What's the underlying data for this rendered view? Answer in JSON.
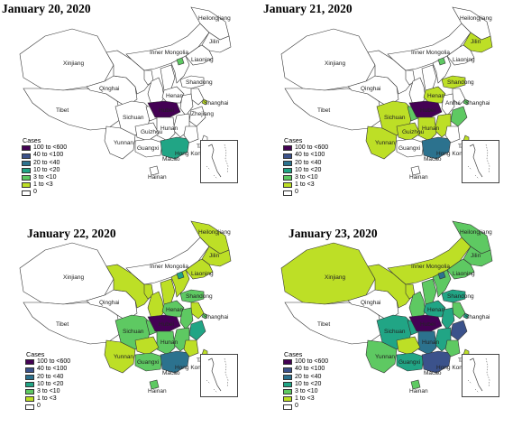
{
  "colors": {
    "c0": "#ffffff",
    "c1": "#bddf26",
    "c3": "#5ec962",
    "c10": "#21a585",
    "c20": "#2c728e",
    "c40": "#3b528b",
    "c100": "#440154"
  },
  "legend": {
    "title": "Cases",
    "items": [
      {
        "label": "100 to <600",
        "color": "#440154"
      },
      {
        "label": "40 to <100",
        "color": "#3b528b"
      },
      {
        "label": "20 to <40",
        "color": "#2c728e"
      },
      {
        "label": "10 to <20",
        "color": "#21a585"
      },
      {
        "label": "3 to <10",
        "color": "#5ec962"
      },
      {
        "label": "1 to <3",
        "color": "#bddf26"
      },
      {
        "label": "0",
        "color": "#ffffff"
      }
    ]
  },
  "panels": [
    {
      "title": "January 20, 2020",
      "regions": {
        "Xinjiang": "c0",
        "Tibet": "c0",
        "Qinghai": "c0",
        "Gansu": "c0",
        "InnerMongolia": "c0",
        "Heilongjiang": "c0",
        "Jilin": "c0",
        "Liaoning": "c0",
        "Sichuan": "c0",
        "Yunnan": "c0",
        "Guizhou": "c0",
        "Guangxi": "c0",
        "Guangdong": "c10",
        "Hunan": "c0",
        "Hubei": "c100",
        "Henan": "c0",
        "Shaanxi": "c0",
        "Shanxi": "c0",
        "Hebei": "c0",
        "Shandong": "c0",
        "Jiangsu": "c0",
        "Anhui": "c0",
        "Zhejiang": "c0",
        "Jiangxi": "c0",
        "Fujian": "c0",
        "Chongqing": "c0",
        "Beijing": "c3",
        "Shanghai": "c1",
        "Hainan": "c0",
        "Taiwan": "c0",
        "Ningxia": "c0"
      },
      "labels": [
        "Xinjiang",
        "Tibet",
        "Qinghai",
        "Sichuan",
        "Yunnan",
        "Guizhou",
        "Guangxi",
        "Hunan",
        "Hubei",
        "Henan",
        "Shandong",
        "Shanghai",
        "Zhejiang",
        "Taiwan",
        "Inner Mongolia",
        "Heilongjiang",
        "Jilin",
        "Liaoning",
        "Hong Kong",
        "Macao",
        "Hainan"
      ]
    },
    {
      "title": "January 21, 2020",
      "regions": {
        "Xinjiang": "c0",
        "Tibet": "c0",
        "Qinghai": "c0",
        "Gansu": "c0",
        "InnerMongolia": "c0",
        "Heilongjiang": "c0",
        "Jilin": "c1",
        "Liaoning": "c0",
        "Sichuan": "c1",
        "Yunnan": "c1",
        "Guizhou": "c1",
        "Guangxi": "c0",
        "Guangdong": "c20",
        "Hunan": "c1",
        "Hubei": "c100",
        "Henan": "c1",
        "Shaanxi": "c0",
        "Shanxi": "c0",
        "Hebei": "c0",
        "Shandong": "c1",
        "Jiangsu": "c0",
        "Anhui": "c0",
        "Zhejiang": "c3",
        "Jiangxi": "c1",
        "Fujian": "c0",
        "Chongqing": "c3",
        "Beijing": "c3",
        "Shanghai": "c3",
        "Hainan": "c0",
        "Taiwan": "c1",
        "Ningxia": "c0"
      },
      "labels": [
        "Xinjiang",
        "Tibet",
        "Qinghai",
        "Sichuan",
        "Yunnan",
        "Guizhou",
        "Guangxi",
        "Hunan",
        "Hubei",
        "Henan",
        "Shandong",
        "Shanghai",
        "Anhui",
        "Taiwan",
        "Inner Mongolia",
        "Heilongjiang",
        "Jilin",
        "Liaoning",
        "Hong Kong",
        "Macao",
        "Hainan"
      ]
    },
    {
      "title": "January 22, 2020",
      "regions": {
        "Xinjiang": "c0",
        "Tibet": "c0",
        "Qinghai": "c0",
        "Gansu": "c1",
        "InnerMongolia": "c0",
        "Heilongjiang": "c1",
        "Jilin": "c1",
        "Liaoning": "c1",
        "Sichuan": "c3",
        "Yunnan": "c1",
        "Guizhou": "c1",
        "Guangxi": "c3",
        "Guangdong": "c20",
        "Hunan": "c3",
        "Hubei": "c100",
        "Henan": "c3",
        "Shaanxi": "c1",
        "Shanxi": "c1",
        "Hebei": "c1",
        "Shandong": "c3",
        "Jiangsu": "c1",
        "Anhui": "c3",
        "Zhejiang": "c10",
        "Jiangxi": "c3",
        "Fujian": "c1",
        "Chongqing": "c3",
        "Beijing": "c10",
        "Shanghai": "c3",
        "Hainan": "c3",
        "Taiwan": "c1",
        "Ningxia": "c1"
      },
      "labels": [
        "Xinjiang",
        "Tibet",
        "Qinghai",
        "Sichuan",
        "Yunnan",
        "Guangxi",
        "Hunan",
        "Hubei",
        "Henan",
        "Shandong",
        "Shanghai",
        "Taiwan",
        "Inner Mongolia",
        "Heilongjiang",
        "Jilin",
        "Liaoning",
        "Hong Kong",
        "Macao",
        "Hainan"
      ]
    },
    {
      "title": "January 23, 2020",
      "regions": {
        "Xinjiang": "c1",
        "Tibet": "c0",
        "Qinghai": "c0",
        "Gansu": "c1",
        "InnerMongolia": "c1",
        "Heilongjiang": "c3",
        "Jilin": "c3",
        "Liaoning": "c3",
        "Sichuan": "c10",
        "Yunnan": "c3",
        "Guizhou": "c1",
        "Guangxi": "c10",
        "Guangdong": "c40",
        "Hunan": "c20",
        "Hubei": "c100",
        "Henan": "c10",
        "Shaanxi": "c3",
        "Shanxi": "c3",
        "Hebei": "c3",
        "Shandong": "c10",
        "Jiangsu": "c3",
        "Anhui": "c10",
        "Zhejiang": "c40",
        "Jiangxi": "c10",
        "Fujian": "c3",
        "Chongqing": "c10",
        "Beijing": "c20",
        "Shanghai": "c10",
        "Hainan": "c3",
        "Taiwan": "c1",
        "Ningxia": "c1"
      },
      "labels": [
        "Xinjiang",
        "Tibet",
        "Qinghai",
        "Sichuan",
        "Yunnan",
        "Guangxi",
        "Hunan",
        "Hubei",
        "Henan",
        "Shandong",
        "Shanghai",
        "Taiwan",
        "Inner Mongolia",
        "Heilongjiang",
        "Jilin",
        "Liaoning",
        "Hong Kong",
        "Macao",
        "Hainan"
      ]
    }
  ]
}
